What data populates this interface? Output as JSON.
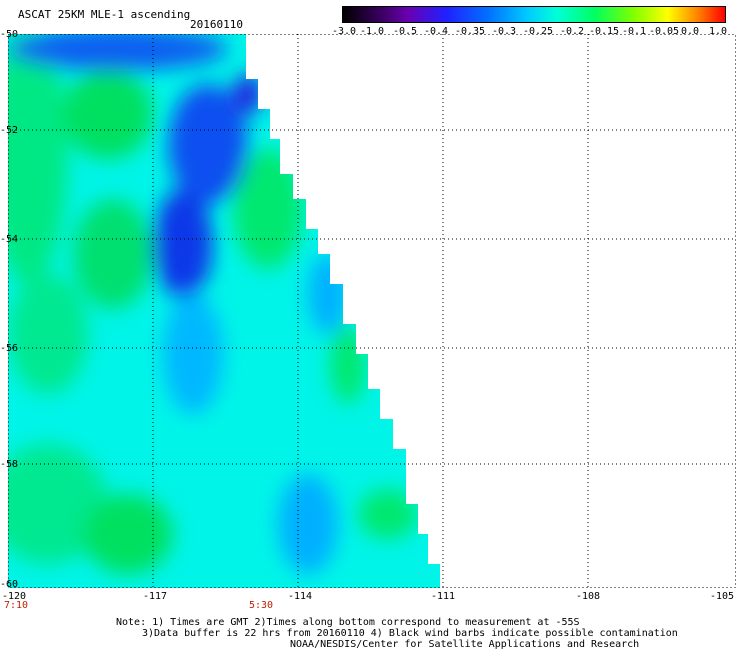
{
  "header": {
    "title": "ASCAT 25KM MLE-1 ascending",
    "date": "20160110"
  },
  "colorbar": {
    "ticks": [
      "-3.0",
      "-1.0",
      "-0.5",
      "-0.4",
      "-0.35",
      "-0.3",
      "-0.25",
      "-0.2",
      "-0.15",
      "-0.1",
      "-0.05",
      "0.0",
      "1.0"
    ],
    "colors": [
      "#000000",
      "#6a00b0",
      "#2020ff",
      "#0070ff",
      "#00c8ff",
      "#00ffd8",
      "#00ff60",
      "#80ff00",
      "#ffff00",
      "#ff8000",
      "#ff0000"
    ]
  },
  "map": {
    "lat_labels": [
      "-50",
      "-52",
      "-54",
      "-56",
      "-58",
      "-60"
    ],
    "lon_labels": [
      "-120",
      "-117",
      "-114",
      "-111",
      "-108",
      "-105"
    ],
    "time_labels": [
      "7:10",
      "5:30"
    ],
    "lon_range": [
      -120,
      -105
    ],
    "lat_range": [
      -60,
      -50
    ]
  },
  "notes": {
    "line1": "Note: 1) Times are GMT 2)Times along bottom correspond to measurement at -55S",
    "line2": "3)Data buffer is 22 hrs from 20160110 4) Black wind barbs indicate possible contamination",
    "line3": "NOAA/NESDIS/Center for Satellite Applications and Research"
  }
}
